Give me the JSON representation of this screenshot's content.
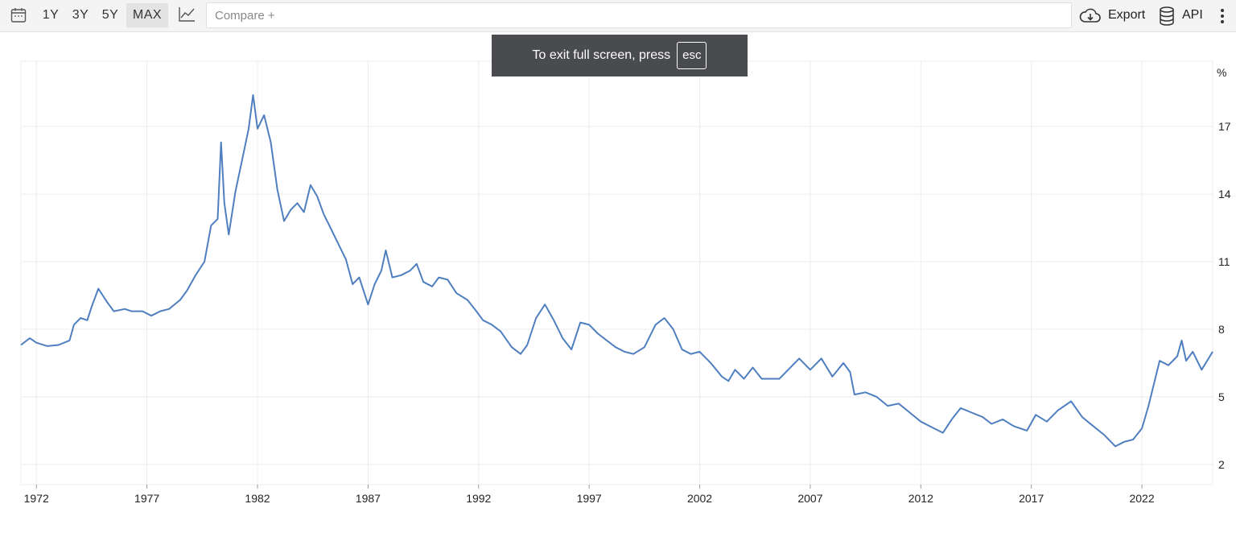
{
  "toolbar": {
    "calendar_icon": "calendar-icon",
    "ranges": [
      "1Y",
      "3Y",
      "5Y",
      "MAX"
    ],
    "active_range": "MAX",
    "chart_type_icon": "line-chart-icon",
    "compare_placeholder": "Compare +",
    "export_label": "Export",
    "export_icon": "cloud-download-icon",
    "api_label": "API",
    "api_icon": "database-icon",
    "more_icon": "more-vertical-icon"
  },
  "fullscreen_notice": {
    "text": "To exit full screen, press",
    "key": "esc"
  },
  "colors": {
    "line": "#4f7fbf",
    "grid": "#ececec",
    "toast_bg": "#4a4b4e"
  },
  "chart_data": {
    "type": "line",
    "title": "",
    "xlabel": "",
    "ylabel": "%",
    "unit_label": "%",
    "x_ticks": [
      "1972",
      "1977",
      "1982",
      "1987",
      "1992",
      "1997",
      "2002",
      "2007",
      "2012",
      "2017",
      "2022"
    ],
    "y_ticks": [
      2,
      5,
      8,
      11,
      14,
      17
    ],
    "xlim": [
      1971.3,
      2025.2
    ],
    "ylim": [
      1.1,
      19.9
    ],
    "grid": true,
    "y_axis_position": "right",
    "series": [
      {
        "values": [
          [
            1971.3,
            7.3
          ],
          [
            1971.7,
            7.6
          ],
          [
            1972.0,
            7.4
          ],
          [
            1972.5,
            7.25
          ],
          [
            1973.0,
            7.3
          ],
          [
            1973.5,
            7.5
          ],
          [
            1973.7,
            8.2
          ],
          [
            1974.0,
            8.5
          ],
          [
            1974.3,
            8.4
          ],
          [
            1974.5,
            9.0
          ],
          [
            1974.8,
            9.8
          ],
          [
            1975.2,
            9.2
          ],
          [
            1975.5,
            8.8
          ],
          [
            1976.0,
            8.9
          ],
          [
            1976.3,
            8.8
          ],
          [
            1976.8,
            8.8
          ],
          [
            1977.2,
            8.6
          ],
          [
            1977.6,
            8.8
          ],
          [
            1978.0,
            8.9
          ],
          [
            1978.5,
            9.3
          ],
          [
            1978.8,
            9.7
          ],
          [
            1979.2,
            10.4
          ],
          [
            1979.6,
            11.0
          ],
          [
            1979.9,
            12.6
          ],
          [
            1980.2,
            12.9
          ],
          [
            1980.35,
            16.3
          ],
          [
            1980.5,
            13.6
          ],
          [
            1980.7,
            12.2
          ],
          [
            1981.0,
            14.1
          ],
          [
            1981.3,
            15.5
          ],
          [
            1981.6,
            16.9
          ],
          [
            1981.8,
            18.4
          ],
          [
            1982.0,
            16.9
          ],
          [
            1982.3,
            17.5
          ],
          [
            1982.6,
            16.3
          ],
          [
            1982.9,
            14.2
          ],
          [
            1983.2,
            12.8
          ],
          [
            1983.5,
            13.3
          ],
          [
            1983.8,
            13.6
          ],
          [
            1984.1,
            13.2
          ],
          [
            1984.4,
            14.4
          ],
          [
            1984.7,
            13.9
          ],
          [
            1985.0,
            13.1
          ],
          [
            1985.3,
            12.5
          ],
          [
            1985.6,
            11.9
          ],
          [
            1986.0,
            11.1
          ],
          [
            1986.3,
            10.0
          ],
          [
            1986.6,
            10.3
          ],
          [
            1987.0,
            9.1
          ],
          [
            1987.3,
            10.0
          ],
          [
            1987.6,
            10.6
          ],
          [
            1987.8,
            11.5
          ],
          [
            1988.1,
            10.3
          ],
          [
            1988.5,
            10.4
          ],
          [
            1988.9,
            10.6
          ],
          [
            1989.2,
            10.9
          ],
          [
            1989.5,
            10.1
          ],
          [
            1989.9,
            9.9
          ],
          [
            1990.2,
            10.3
          ],
          [
            1990.6,
            10.2
          ],
          [
            1991.0,
            9.6
          ],
          [
            1991.5,
            9.3
          ],
          [
            1991.9,
            8.8
          ],
          [
            1992.2,
            8.4
          ],
          [
            1992.6,
            8.2
          ],
          [
            1993.0,
            7.9
          ],
          [
            1993.5,
            7.2
          ],
          [
            1993.9,
            6.9
          ],
          [
            1994.2,
            7.3
          ],
          [
            1994.6,
            8.5
          ],
          [
            1995.0,
            9.1
          ],
          [
            1995.4,
            8.4
          ],
          [
            1995.8,
            7.6
          ],
          [
            1996.2,
            7.1
          ],
          [
            1996.6,
            8.3
          ],
          [
            1997.0,
            8.2
          ],
          [
            1997.4,
            7.8
          ],
          [
            1997.8,
            7.5
          ],
          [
            1998.2,
            7.2
          ],
          [
            1998.6,
            7.0
          ],
          [
            1999.0,
            6.9
          ],
          [
            1999.5,
            7.2
          ],
          [
            2000.0,
            8.2
          ],
          [
            2000.4,
            8.5
          ],
          [
            2000.8,
            8.0
          ],
          [
            2001.2,
            7.1
          ],
          [
            2001.6,
            6.9
          ],
          [
            2002.0,
            7.0
          ],
          [
            2002.5,
            6.5
          ],
          [
            2003.0,
            5.9
          ],
          [
            2003.3,
            5.7
          ],
          [
            2003.6,
            6.2
          ],
          [
            2004.0,
            5.8
          ],
          [
            2004.4,
            6.3
          ],
          [
            2004.8,
            5.8
          ],
          [
            2005.2,
            5.8
          ],
          [
            2005.6,
            5.8
          ],
          [
            2006.0,
            6.2
          ],
          [
            2006.5,
            6.7
          ],
          [
            2007.0,
            6.2
          ],
          [
            2007.5,
            6.7
          ],
          [
            2008.0,
            5.9
          ],
          [
            2008.5,
            6.5
          ],
          [
            2008.8,
            6.1
          ],
          [
            2009.0,
            5.1
          ],
          [
            2009.5,
            5.2
          ],
          [
            2010.0,
            5.0
          ],
          [
            2010.5,
            4.6
          ],
          [
            2011.0,
            4.7
          ],
          [
            2011.5,
            4.3
          ],
          [
            2012.0,
            3.9
          ],
          [
            2012.6,
            3.6
          ],
          [
            2013.0,
            3.4
          ],
          [
            2013.4,
            4.0
          ],
          [
            2013.8,
            4.5
          ],
          [
            2014.3,
            4.3
          ],
          [
            2014.8,
            4.1
          ],
          [
            2015.2,
            3.8
          ],
          [
            2015.7,
            4.0
          ],
          [
            2016.2,
            3.7
          ],
          [
            2016.8,
            3.5
          ],
          [
            2017.2,
            4.2
          ],
          [
            2017.7,
            3.9
          ],
          [
            2018.2,
            4.4
          ],
          [
            2018.8,
            4.8
          ],
          [
            2019.3,
            4.1
          ],
          [
            2019.8,
            3.7
          ],
          [
            2020.3,
            3.3
          ],
          [
            2020.8,
            2.8
          ],
          [
            2021.2,
            3.0
          ],
          [
            2021.6,
            3.1
          ],
          [
            2022.0,
            3.6
          ],
          [
            2022.3,
            4.6
          ],
          [
            2022.8,
            6.6
          ],
          [
            2023.2,
            6.4
          ],
          [
            2023.6,
            6.8
          ],
          [
            2023.8,
            7.5
          ],
          [
            2024.0,
            6.6
          ],
          [
            2024.3,
            7.0
          ],
          [
            2024.7,
            6.2
          ],
          [
            2025.2,
            7.0
          ]
        ]
      }
    ]
  }
}
